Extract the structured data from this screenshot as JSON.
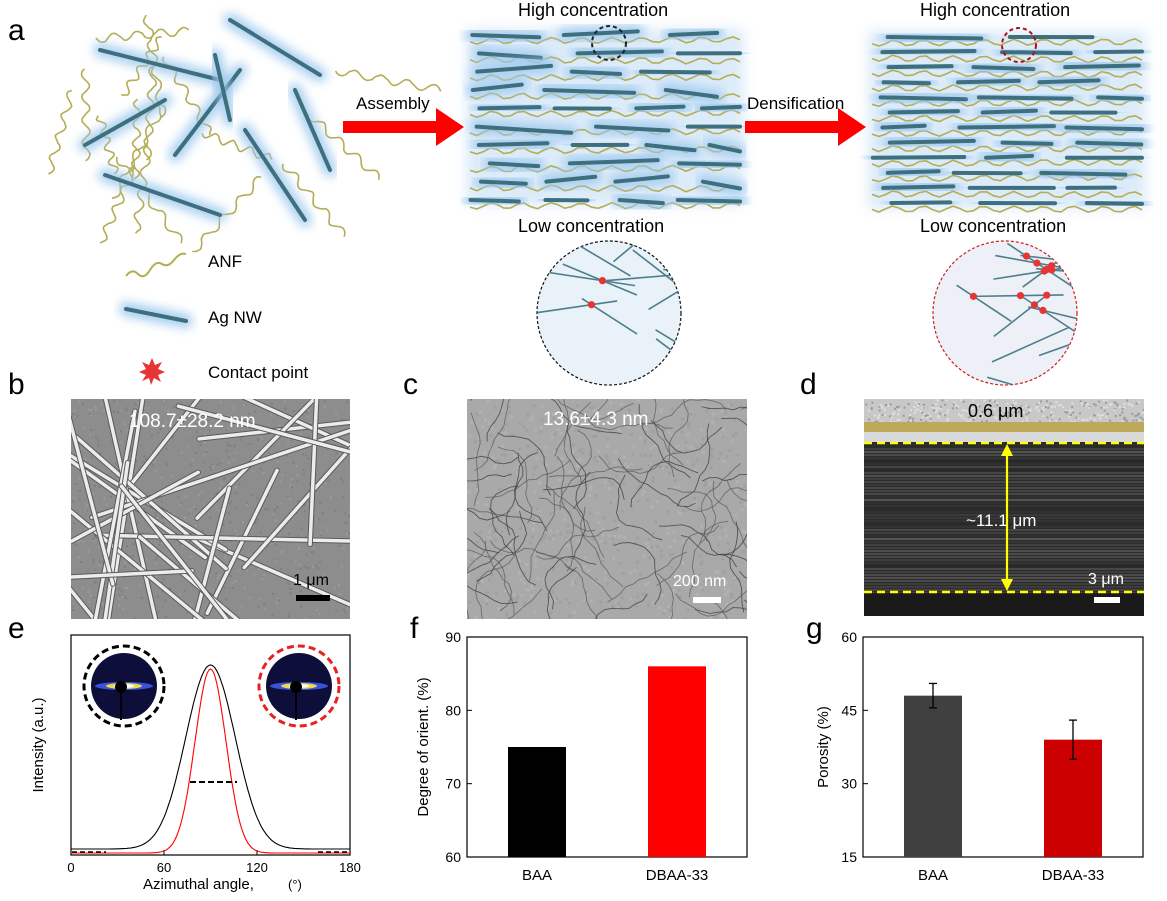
{
  "panel_labels": [
    "a",
    "b",
    "c",
    "d",
    "e",
    "f",
    "g"
  ],
  "panel_a": {
    "arrow1_label": "Assembly",
    "arrow2_label": "Densification",
    "high_label_1": "High concentration",
    "low_label_1": "Low concentration",
    "high_label_2": "High concentration",
    "low_label_2": "Low concentration",
    "legend": {
      "anf": "ANF",
      "agnw": "Ag NW",
      "contact": "Contact point"
    },
    "colors": {
      "anf": "#b5ad55",
      "nw": "#3d6f7e",
      "glow": "#9cc8ee",
      "arrow": "#ff0000",
      "contact": "#e53535"
    }
  },
  "panel_b": {
    "diameter": "108.7±28.2 nm",
    "scale": "1 μm"
  },
  "panel_c": {
    "diameter": "13.6±4.3 nm",
    "scale": "200 nm"
  },
  "panel_d": {
    "top_thickness": "0.6 μm",
    "thickness": "~11.1 μm",
    "scale": "3 μm"
  },
  "chart_data": [
    {
      "panel": "e",
      "type": "line",
      "xlabel": "Azimuthal angle,",
      "xunit": "(°)",
      "ylabel": "Intensity (a.u.)",
      "xlim": [
        0,
        180
      ],
      "xticks": [
        "0",
        "60",
        "120",
        "180"
      ],
      "series": [
        {
          "color": "#000000",
          "center": 90,
          "sigma": 16,
          "peak": 0.92,
          "baseline": 0.02
        },
        {
          "color": "#ff0000",
          "center": 90,
          "sigma": 10,
          "peak": 0.92,
          "baseline": 0.0
        }
      ]
    },
    {
      "panel": "f",
      "type": "bar",
      "ylabel": "Degree of  orient. (%)",
      "categories": [
        "BAA",
        "DBAA-33"
      ],
      "values": [
        75,
        86
      ],
      "colors": [
        "#000000",
        "#ff0000"
      ],
      "ylim": [
        60,
        90
      ],
      "yticks": [
        "60",
        "70",
        "80",
        "90"
      ]
    },
    {
      "panel": "g",
      "type": "bar",
      "ylabel": "Porosity (%)",
      "categories": [
        "BAA",
        "DBAA-33"
      ],
      "values": [
        48,
        39
      ],
      "errors": [
        2.5,
        4
      ],
      "colors": [
        "#404040",
        "#cc0000"
      ],
      "ylim": [
        15,
        60
      ],
      "yticks": [
        "15",
        "30",
        "45",
        "60"
      ]
    }
  ]
}
